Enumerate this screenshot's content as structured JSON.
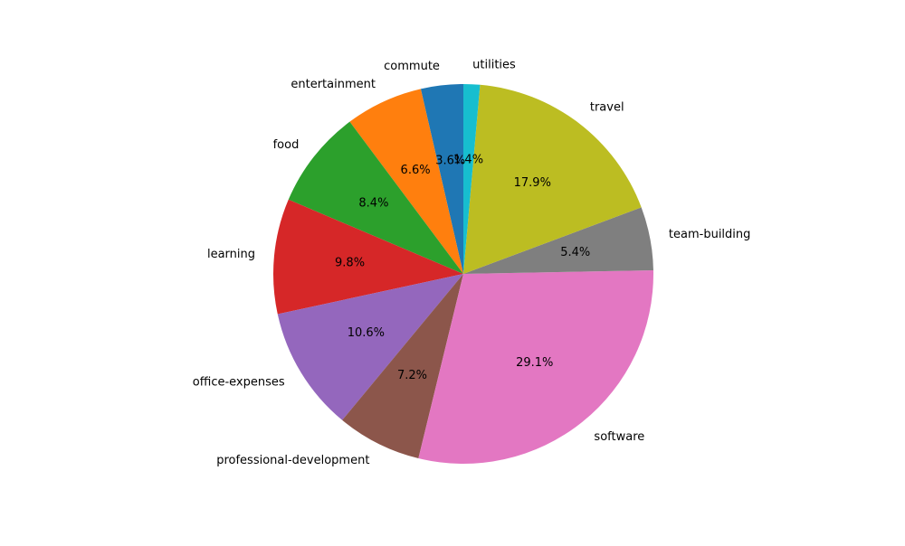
{
  "chart_data": {
    "type": "pie",
    "title": "",
    "start_angle_deg": 90,
    "direction": "counterclockwise",
    "categories": [
      "commute",
      "entertainment",
      "food",
      "learning",
      "office-expenses",
      "professional-development",
      "software",
      "team-building",
      "travel",
      "utilities"
    ],
    "values": [
      3.6,
      6.6,
      8.4,
      9.8,
      10.6,
      7.2,
      29.1,
      5.4,
      17.9,
      1.4
    ],
    "value_labels": [
      "3.6%",
      "6.6%",
      "8.4%",
      "9.8%",
      "10.6%",
      "7.2%",
      "29.1%",
      "5.4%",
      "17.9%",
      "1.4%"
    ],
    "colors": [
      "#1f77b4",
      "#ff7f0e",
      "#2ca02c",
      "#d62728",
      "#9467bd",
      "#8c564b",
      "#e377c2",
      "#7f7f7f",
      "#bcbd22",
      "#17becf"
    ],
    "legend": "none"
  }
}
